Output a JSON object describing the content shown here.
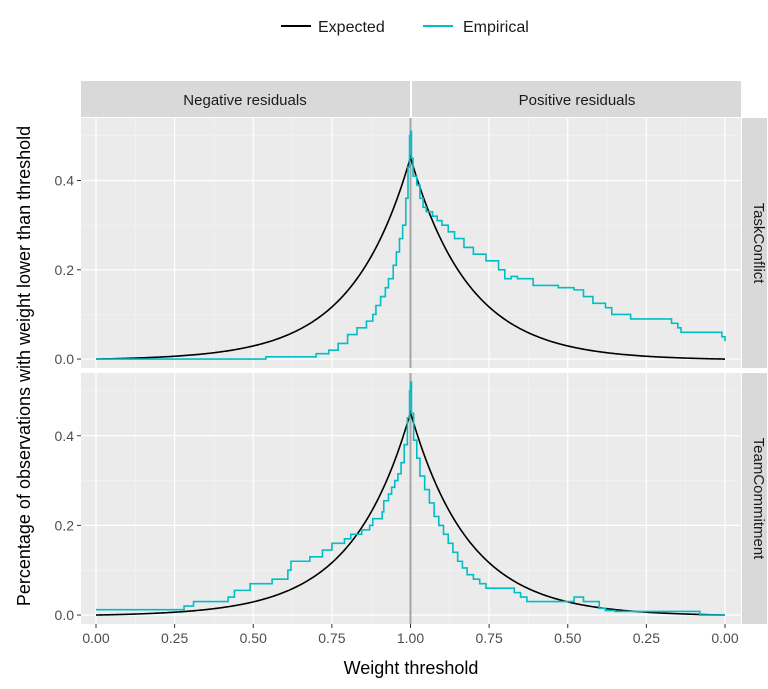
{
  "chart_data": {
    "type": "line",
    "xlabel": "Weight threshold",
    "ylabel": "Percentage of observations with weight lower than threshold",
    "legend": {
      "placement": "top",
      "entries": [
        {
          "name": "Expected",
          "color": "#000000"
        },
        {
          "name": "Empirical",
          "color": "#00BFC4"
        }
      ]
    },
    "column_strips": [
      "Negative residuals",
      "Positive residuals"
    ],
    "x_ticks": [
      "0.00",
      "0.25",
      "0.50",
      "0.75",
      "1.00",
      "0.75",
      "0.50",
      "0.25",
      "0.00"
    ],
    "x_range": [
      0,
      2
    ],
    "y_ticks": [
      "0.0",
      "0.2",
      "0.4"
    ],
    "y_range": [
      -0.02,
      0.54
    ],
    "grid": true,
    "panels": [
      {
        "row_label": "TaskConflict",
        "expected_peak": 0.45,
        "empirical": [
          [
            0.0,
            0.0
          ],
          [
            0.54,
            0.0
          ],
          [
            0.54,
            0.005
          ],
          [
            0.7,
            0.005
          ],
          [
            0.7,
            0.012
          ],
          [
            0.74,
            0.012
          ],
          [
            0.74,
            0.02
          ],
          [
            0.77,
            0.02
          ],
          [
            0.77,
            0.035
          ],
          [
            0.8,
            0.035
          ],
          [
            0.8,
            0.055
          ],
          [
            0.83,
            0.055
          ],
          [
            0.83,
            0.07
          ],
          [
            0.86,
            0.07
          ],
          [
            0.86,
            0.085
          ],
          [
            0.88,
            0.085
          ],
          [
            0.88,
            0.1
          ],
          [
            0.89,
            0.1
          ],
          [
            0.89,
            0.12
          ],
          [
            0.905,
            0.12
          ],
          [
            0.905,
            0.14
          ],
          [
            0.92,
            0.14
          ],
          [
            0.92,
            0.16
          ],
          [
            0.93,
            0.16
          ],
          [
            0.93,
            0.18
          ],
          [
            0.945,
            0.18
          ],
          [
            0.945,
            0.21
          ],
          [
            0.955,
            0.21
          ],
          [
            0.955,
            0.24
          ],
          [
            0.965,
            0.24
          ],
          [
            0.965,
            0.27
          ],
          [
            0.975,
            0.27
          ],
          [
            0.975,
            0.3
          ],
          [
            0.985,
            0.3
          ],
          [
            0.985,
            0.36
          ],
          [
            0.992,
            0.36
          ],
          [
            0.992,
            0.43
          ],
          [
            0.997,
            0.43
          ],
          [
            0.997,
            0.5
          ],
          [
            1.0,
            0.5
          ],
          [
            1.0,
            0.51
          ],
          [
            1.003,
            0.51
          ],
          [
            1.003,
            0.45
          ],
          [
            1.008,
            0.45
          ],
          [
            1.008,
            0.41
          ],
          [
            1.02,
            0.41
          ],
          [
            1.02,
            0.39
          ],
          [
            1.03,
            0.39
          ],
          [
            1.03,
            0.36
          ],
          [
            1.04,
            0.36
          ],
          [
            1.04,
            0.34
          ],
          [
            1.05,
            0.34
          ],
          [
            1.05,
            0.33
          ],
          [
            1.07,
            0.33
          ],
          [
            1.07,
            0.32
          ],
          [
            1.085,
            0.32
          ],
          [
            1.085,
            0.31
          ],
          [
            1.1,
            0.31
          ],
          [
            1.1,
            0.3
          ],
          [
            1.12,
            0.3
          ],
          [
            1.12,
            0.285
          ],
          [
            1.14,
            0.285
          ],
          [
            1.14,
            0.27
          ],
          [
            1.17,
            0.27
          ],
          [
            1.17,
            0.25
          ],
          [
            1.2,
            0.25
          ],
          [
            1.2,
            0.235
          ],
          [
            1.24,
            0.235
          ],
          [
            1.24,
            0.22
          ],
          [
            1.28,
            0.22
          ],
          [
            1.28,
            0.2
          ],
          [
            1.3,
            0.2
          ],
          [
            1.3,
            0.18
          ],
          [
            1.32,
            0.18
          ],
          [
            1.32,
            0.185
          ],
          [
            1.34,
            0.185
          ],
          [
            1.34,
            0.18
          ],
          [
            1.39,
            0.18
          ],
          [
            1.39,
            0.165
          ],
          [
            1.47,
            0.165
          ],
          [
            1.47,
            0.16
          ],
          [
            1.52,
            0.16
          ],
          [
            1.52,
            0.155
          ],
          [
            1.55,
            0.155
          ],
          [
            1.55,
            0.14
          ],
          [
            1.58,
            0.14
          ],
          [
            1.58,
            0.125
          ],
          [
            1.62,
            0.125
          ],
          [
            1.62,
            0.115
          ],
          [
            1.64,
            0.115
          ],
          [
            1.64,
            0.1
          ],
          [
            1.7,
            0.1
          ],
          [
            1.7,
            0.09
          ],
          [
            1.83,
            0.09
          ],
          [
            1.83,
            0.08
          ],
          [
            1.85,
            0.08
          ],
          [
            1.85,
            0.07
          ],
          [
            1.86,
            0.07
          ],
          [
            1.86,
            0.06
          ],
          [
            1.99,
            0.06
          ],
          [
            1.99,
            0.05
          ],
          [
            2.0,
            0.05
          ],
          [
            2.0,
            0.04
          ]
        ]
      },
      {
        "row_label": "TeamCommitment",
        "expected_peak": 0.45,
        "empirical": [
          [
            0.0,
            0.012
          ],
          [
            0.28,
            0.012
          ],
          [
            0.28,
            0.02
          ],
          [
            0.31,
            0.02
          ],
          [
            0.31,
            0.03
          ],
          [
            0.42,
            0.03
          ],
          [
            0.42,
            0.04
          ],
          [
            0.44,
            0.04
          ],
          [
            0.44,
            0.055
          ],
          [
            0.49,
            0.055
          ],
          [
            0.49,
            0.07
          ],
          [
            0.56,
            0.07
          ],
          [
            0.56,
            0.08
          ],
          [
            0.61,
            0.08
          ],
          [
            0.61,
            0.1
          ],
          [
            0.62,
            0.1
          ],
          [
            0.62,
            0.12
          ],
          [
            0.68,
            0.12
          ],
          [
            0.68,
            0.13
          ],
          [
            0.72,
            0.13
          ],
          [
            0.72,
            0.145
          ],
          [
            0.75,
            0.145
          ],
          [
            0.75,
            0.16
          ],
          [
            0.79,
            0.16
          ],
          [
            0.79,
            0.17
          ],
          [
            0.81,
            0.17
          ],
          [
            0.81,
            0.18
          ],
          [
            0.845,
            0.18
          ],
          [
            0.845,
            0.19
          ],
          [
            0.87,
            0.19
          ],
          [
            0.87,
            0.2
          ],
          [
            0.88,
            0.2
          ],
          [
            0.88,
            0.215
          ],
          [
            0.91,
            0.215
          ],
          [
            0.91,
            0.23
          ],
          [
            0.915,
            0.23
          ],
          [
            0.915,
            0.255
          ],
          [
            0.93,
            0.255
          ],
          [
            0.93,
            0.27
          ],
          [
            0.94,
            0.27
          ],
          [
            0.94,
            0.285
          ],
          [
            0.95,
            0.285
          ],
          [
            0.95,
            0.3
          ],
          [
            0.96,
            0.3
          ],
          [
            0.96,
            0.315
          ],
          [
            0.97,
            0.315
          ],
          [
            0.97,
            0.34
          ],
          [
            0.98,
            0.34
          ],
          [
            0.98,
            0.38
          ],
          [
            0.99,
            0.38
          ],
          [
            0.99,
            0.44
          ],
          [
            0.997,
            0.44
          ],
          [
            0.997,
            0.5
          ],
          [
            1.0,
            0.5
          ],
          [
            1.0,
            0.52
          ],
          [
            1.003,
            0.52
          ],
          [
            1.003,
            0.45
          ],
          [
            1.01,
            0.45
          ],
          [
            1.01,
            0.39
          ],
          [
            1.02,
            0.39
          ],
          [
            1.02,
            0.35
          ],
          [
            1.03,
            0.35
          ],
          [
            1.03,
            0.31
          ],
          [
            1.045,
            0.31
          ],
          [
            1.045,
            0.28
          ],
          [
            1.06,
            0.28
          ],
          [
            1.06,
            0.25
          ],
          [
            1.075,
            0.25
          ],
          [
            1.075,
            0.22
          ],
          [
            1.09,
            0.22
          ],
          [
            1.09,
            0.2
          ],
          [
            1.105,
            0.2
          ],
          [
            1.105,
            0.18
          ],
          [
            1.12,
            0.18
          ],
          [
            1.12,
            0.16
          ],
          [
            1.135,
            0.16
          ],
          [
            1.135,
            0.14
          ],
          [
            1.15,
            0.14
          ],
          [
            1.15,
            0.12
          ],
          [
            1.165,
            0.12
          ],
          [
            1.165,
            0.105
          ],
          [
            1.18,
            0.105
          ],
          [
            1.18,
            0.09
          ],
          [
            1.2,
            0.09
          ],
          [
            1.2,
            0.08
          ],
          [
            1.22,
            0.08
          ],
          [
            1.22,
            0.07
          ],
          [
            1.24,
            0.07
          ],
          [
            1.24,
            0.06
          ],
          [
            1.33,
            0.06
          ],
          [
            1.33,
            0.05
          ],
          [
            1.35,
            0.05
          ],
          [
            1.35,
            0.04
          ],
          [
            1.37,
            0.04
          ],
          [
            1.37,
            0.03
          ],
          [
            1.52,
            0.03
          ],
          [
            1.52,
            0.04
          ],
          [
            1.55,
            0.04
          ],
          [
            1.55,
            0.03
          ],
          [
            1.6,
            0.03
          ],
          [
            1.6,
            0.015
          ],
          [
            1.62,
            0.015
          ],
          [
            1.62,
            0.01
          ],
          [
            1.65,
            0.01
          ],
          [
            1.65,
            0.008
          ],
          [
            1.92,
            0.008
          ],
          [
            1.92,
            0.0
          ],
          [
            2.0,
            0.0
          ]
        ]
      }
    ]
  }
}
